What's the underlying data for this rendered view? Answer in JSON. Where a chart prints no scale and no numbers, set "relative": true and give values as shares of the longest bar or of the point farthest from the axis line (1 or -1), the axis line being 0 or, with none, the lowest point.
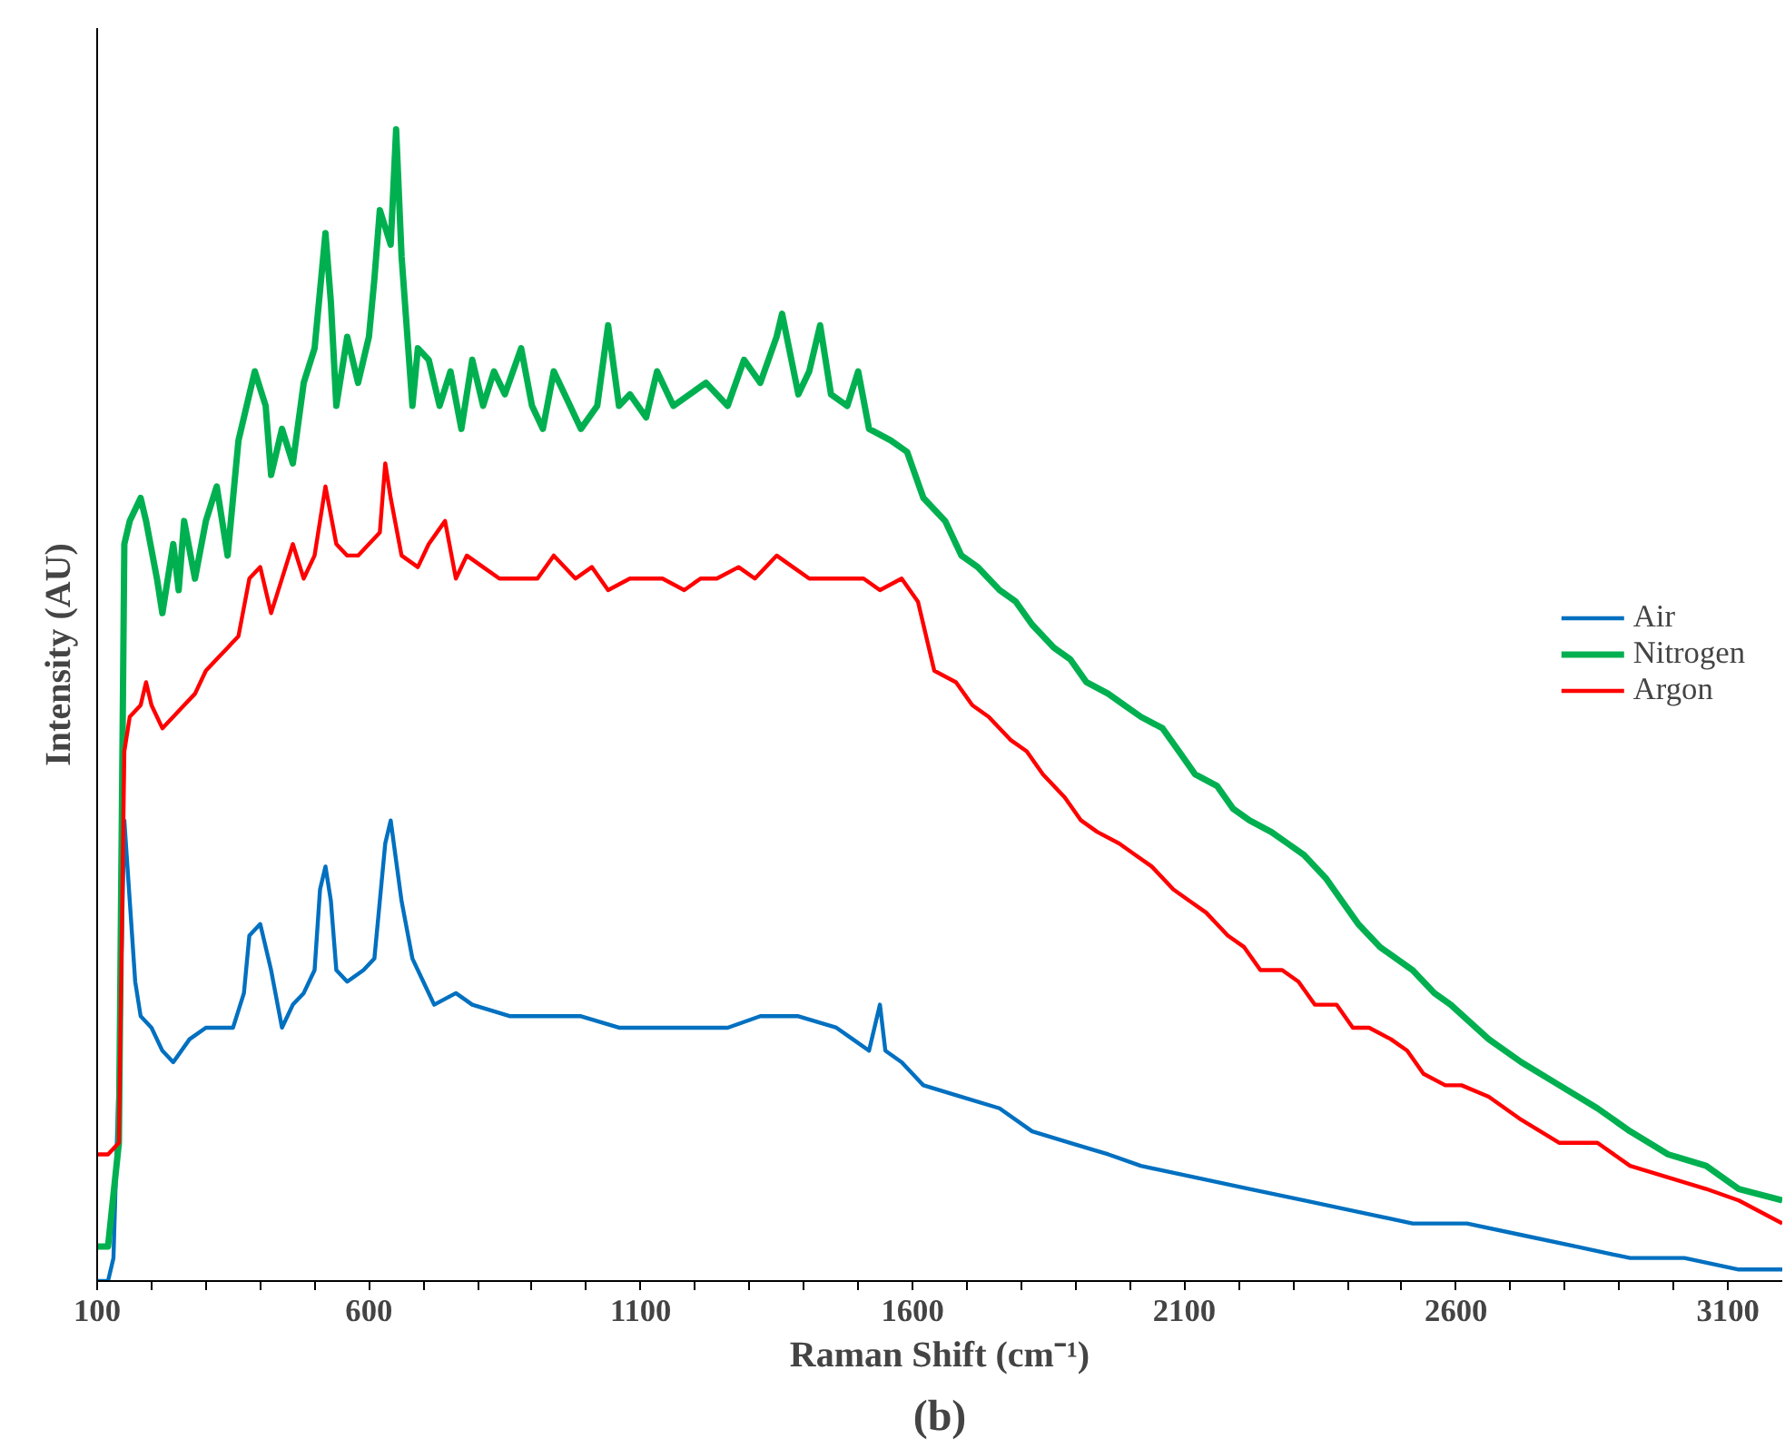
{
  "chart_data": {
    "type": "line",
    "relative": true,
    "xlabel": "Raman Shift (cm⁻¹)",
    "ylabel": "Intensity (AU)",
    "annotations": [
      "(b)"
    ],
    "xlim": [
      100,
      3200
    ],
    "xticks": [
      100,
      {
        "value": 200,
        "label": null
      },
      {
        "value": 300,
        "label": null
      },
      {
        "value": 400,
        "label": null
      },
      {
        "value": 500,
        "label": null
      },
      600,
      {
        "value": 700,
        "label": null
      },
      {
        "value": 800,
        "label": null
      },
      {
        "value": 900,
        "label": null
      },
      {
        "value": 1000,
        "label": null
      },
      1100,
      {
        "value": 1200,
        "label": null
      },
      {
        "value": 1300,
        "label": null
      },
      {
        "value": 1400,
        "label": null
      },
      {
        "value": 1500,
        "label": null
      },
      1600,
      {
        "value": 1700,
        "label": null
      },
      {
        "value": 1800,
        "label": null
      },
      {
        "value": 1900,
        "label": null
      },
      {
        "value": 2000,
        "label": null
      },
      2100,
      {
        "value": 2200,
        "label": null
      },
      {
        "value": 2300,
        "label": null
      },
      {
        "value": 2400,
        "label": null
      },
      {
        "value": 2500,
        "label": null
      },
      2600,
      {
        "value": 2700,
        "label": null
      },
      {
        "value": 2800,
        "label": null
      },
      {
        "value": 2900,
        "label": null
      },
      {
        "value": 3000,
        "label": null
      },
      3100
    ],
    "tick_labels": "x",
    "legend": "right",
    "grid": false,
    "marker": "none",
    "series": [
      {
        "name": "Air",
        "color": "#0070c0",
        "x": [
          100,
          120,
          130,
          140,
          150,
          160,
          170,
          180,
          200,
          220,
          240,
          270,
          300,
          320,
          350,
          370,
          380,
          400,
          420,
          440,
          460,
          480,
          500,
          510,
          520,
          530,
          540,
          560,
          590,
          610,
          630,
          640,
          660,
          680,
          700,
          720,
          760,
          790,
          860,
          920,
          990,
          1060,
          1120,
          1190,
          1260,
          1320,
          1390,
          1460,
          1490,
          1520,
          1540,
          1550,
          1580,
          1620,
          1690,
          1760,
          1820,
          1890,
          1960,
          2020,
          2120,
          2220,
          2320,
          2420,
          2520,
          2620,
          2720,
          2820,
          2920,
          3020,
          3120,
          3200
        ],
        "values": [
          0,
          0.0,
          0.02,
          0.18,
          0.4,
          0.33,
          0.26,
          0.23,
          0.22,
          0.2,
          0.19,
          0.21,
          0.22,
          0.22,
          0.22,
          0.25,
          0.3,
          0.31,
          0.27,
          0.22,
          0.24,
          0.25,
          0.27,
          0.34,
          0.36,
          0.33,
          0.27,
          0.26,
          0.27,
          0.28,
          0.38,
          0.4,
          0.33,
          0.28,
          0.26,
          0.24,
          0.25,
          0.24,
          0.23,
          0.23,
          0.23,
          0.22,
          0.22,
          0.22,
          0.22,
          0.23,
          0.23,
          0.22,
          0.21,
          0.2,
          0.24,
          0.2,
          0.19,
          0.17,
          0.16,
          0.15,
          0.13,
          0.12,
          0.11,
          0.1,
          0.09,
          0.08,
          0.07,
          0.06,
          0.05,
          0.05,
          0.04,
          0.03,
          0.02,
          0.02,
          0.01,
          0.01
        ]
      },
      {
        "name": "Nitrogen",
        "color": "#00b050",
        "x": [
          100,
          120,
          140,
          150,
          160,
          180,
          190,
          210,
          220,
          240,
          250,
          260,
          280,
          300,
          320,
          340,
          360,
          390,
          410,
          420,
          440,
          460,
          480,
          500,
          520,
          530,
          540,
          560,
          580,
          600,
          610,
          620,
          640,
          650,
          660,
          680,
          690,
          710,
          730,
          750,
          770,
          790,
          810,
          830,
          850,
          880,
          900,
          920,
          940,
          960,
          990,
          1020,
          1040,
          1060,
          1080,
          1110,
          1130,
          1160,
          1190,
          1220,
          1260,
          1290,
          1320,
          1350,
          1360,
          1390,
          1410,
          1430,
          1450,
          1480,
          1500,
          1520,
          1560,
          1590,
          1620,
          1660,
          1690,
          1720,
          1760,
          1790,
          1820,
          1860,
          1890,
          1920,
          1960,
          1990,
          2020,
          2060,
          2090,
          2120,
          2160,
          2190,
          2220,
          2260,
          2290,
          2320,
          2360,
          2390,
          2420,
          2460,
          2490,
          2520,
          2560,
          2590,
          2660,
          2720,
          2790,
          2860,
          2920,
          2990,
          3060,
          3120,
          3200
        ],
        "values": [
          0.03,
          0.03,
          0.12,
          0.64,
          0.66,
          0.68,
          0.66,
          0.61,
          0.58,
          0.64,
          0.6,
          0.66,
          0.61,
          0.66,
          0.69,
          0.63,
          0.73,
          0.79,
          0.76,
          0.7,
          0.74,
          0.71,
          0.78,
          0.81,
          0.91,
          0.85,
          0.76,
          0.82,
          0.78,
          0.82,
          0.87,
          0.93,
          0.9,
          1.0,
          0.89,
          0.76,
          0.81,
          0.8,
          0.76,
          0.79,
          0.74,
          0.8,
          0.76,
          0.79,
          0.77,
          0.81,
          0.76,
          0.74,
          0.79,
          0.77,
          0.74,
          0.76,
          0.83,
          0.76,
          0.77,
          0.75,
          0.79,
          0.76,
          0.77,
          0.78,
          0.76,
          0.8,
          0.78,
          0.82,
          0.84,
          0.77,
          0.79,
          0.83,
          0.77,
          0.76,
          0.79,
          0.74,
          0.73,
          0.72,
          0.68,
          0.66,
          0.63,
          0.62,
          0.6,
          0.59,
          0.57,
          0.55,
          0.54,
          0.52,
          0.51,
          0.5,
          0.49,
          0.48,
          0.46,
          0.44,
          0.43,
          0.41,
          0.4,
          0.39,
          0.38,
          0.37,
          0.35,
          0.33,
          0.31,
          0.29,
          0.28,
          0.27,
          0.25,
          0.24,
          0.21,
          0.19,
          0.17,
          0.15,
          0.13,
          0.11,
          0.1,
          0.08,
          0.07
        ]
      },
      {
        "name": "Argon",
        "color": "#ff0000",
        "x": [
          100,
          120,
          140,
          150,
          160,
          180,
          190,
          200,
          220,
          240,
          260,
          280,
          300,
          320,
          340,
          360,
          380,
          400,
          410,
          420,
          440,
          460,
          480,
          500,
          520,
          540,
          560,
          580,
          600,
          620,
          630,
          640,
          660,
          690,
          710,
          740,
          760,
          780,
          810,
          840,
          880,
          910,
          940,
          980,
          1010,
          1040,
          1080,
          1110,
          1140,
          1180,
          1210,
          1240,
          1280,
          1310,
          1350,
          1380,
          1410,
          1440,
          1480,
          1510,
          1540,
          1580,
          1610,
          1640,
          1680,
          1710,
          1740,
          1780,
          1810,
          1840,
          1880,
          1910,
          1940,
          1980,
          2010,
          2040,
          2080,
          2110,
          2140,
          2180,
          2210,
          2240,
          2280,
          2310,
          2340,
          2380,
          2410,
          2440,
          2480,
          2510,
          2540,
          2580,
          2610,
          2660,
          2720,
          2790,
          2860,
          2920,
          2990,
          3060,
          3120,
          3200
        ],
        "values": [
          0.11,
          0.11,
          0.12,
          0.46,
          0.49,
          0.5,
          0.52,
          0.5,
          0.48,
          0.49,
          0.5,
          0.51,
          0.53,
          0.54,
          0.55,
          0.56,
          0.61,
          0.62,
          0.6,
          0.58,
          0.61,
          0.64,
          0.61,
          0.63,
          0.69,
          0.64,
          0.63,
          0.63,
          0.64,
          0.65,
          0.71,
          0.68,
          0.63,
          0.62,
          0.64,
          0.66,
          0.61,
          0.63,
          0.62,
          0.61,
          0.61,
          0.61,
          0.63,
          0.61,
          0.62,
          0.6,
          0.61,
          0.61,
          0.61,
          0.6,
          0.61,
          0.61,
          0.62,
          0.61,
          0.63,
          0.62,
          0.61,
          0.61,
          0.61,
          0.61,
          0.6,
          0.61,
          0.59,
          0.53,
          0.52,
          0.5,
          0.49,
          0.47,
          0.46,
          0.44,
          0.42,
          0.4,
          0.39,
          0.38,
          0.37,
          0.36,
          0.34,
          0.33,
          0.32,
          0.3,
          0.29,
          0.27,
          0.27,
          0.26,
          0.24,
          0.24,
          0.22,
          0.22,
          0.21,
          0.2,
          0.18,
          0.17,
          0.17,
          0.16,
          0.14,
          0.12,
          0.12,
          0.1,
          0.09,
          0.08,
          0.07,
          0.05
        ]
      }
    ]
  }
}
